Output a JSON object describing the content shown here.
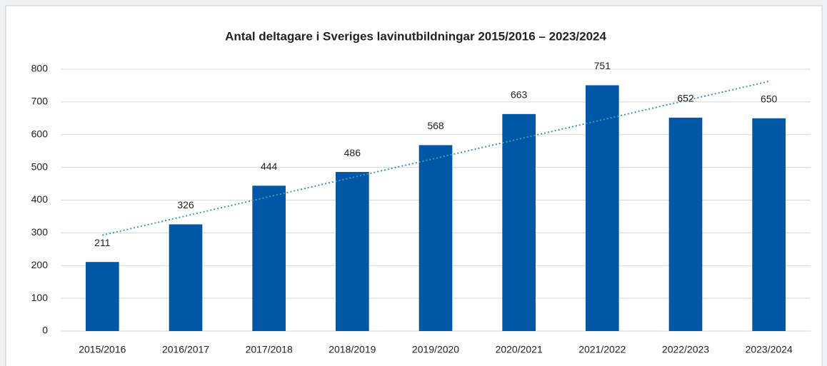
{
  "chart_data": {
    "type": "bar",
    "title": "Antal deltagare i Sveriges lavinutbildningar 2015/2016 – 2023/2024",
    "categories": [
      "2015/2016",
      "2016/2017",
      "2017/2018",
      "2018/2019",
      "2019/2020",
      "2020/2021",
      "2021/2022",
      "2022/2023",
      "2023/2024"
    ],
    "values": [
      211,
      326,
      444,
      486,
      568,
      663,
      751,
      652,
      650
    ],
    "color": "#0057a6",
    "ylim": [
      0,
      800
    ],
    "yticks": [
      0,
      100,
      200,
      300,
      400,
      500,
      600,
      700,
      800
    ],
    "grid": true,
    "data_labels": true,
    "trendline": "linear",
    "trendline_color": "#3a9ab8"
  }
}
